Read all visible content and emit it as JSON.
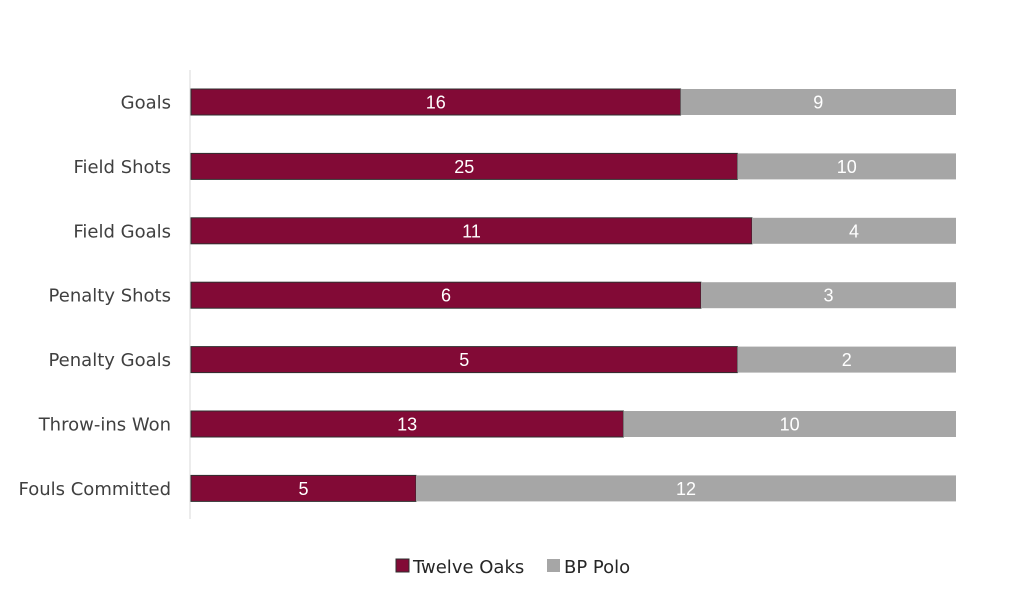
{
  "chart_data": {
    "type": "bar",
    "orientation": "horizontal",
    "stacked": true,
    "normalized": "100%",
    "title": "",
    "xlabel": "",
    "ylabel": "",
    "grid": false,
    "legend": "bottom",
    "categories": [
      "Goals",
      "Field Shots",
      "Field Goals",
      "Penalty Shots",
      "Penalty Goals",
      "Throw-ins Won",
      "Fouls Committed"
    ],
    "series": [
      {
        "name": "Twelve Oaks",
        "color": "#820a36",
        "values": [
          16,
          25,
          11,
          6,
          5,
          13,
          5
        ]
      },
      {
        "name": "BP Polo",
        "color": "#a6a6a6",
        "values": [
          9,
          10,
          4,
          3,
          2,
          10,
          12
        ]
      }
    ]
  }
}
